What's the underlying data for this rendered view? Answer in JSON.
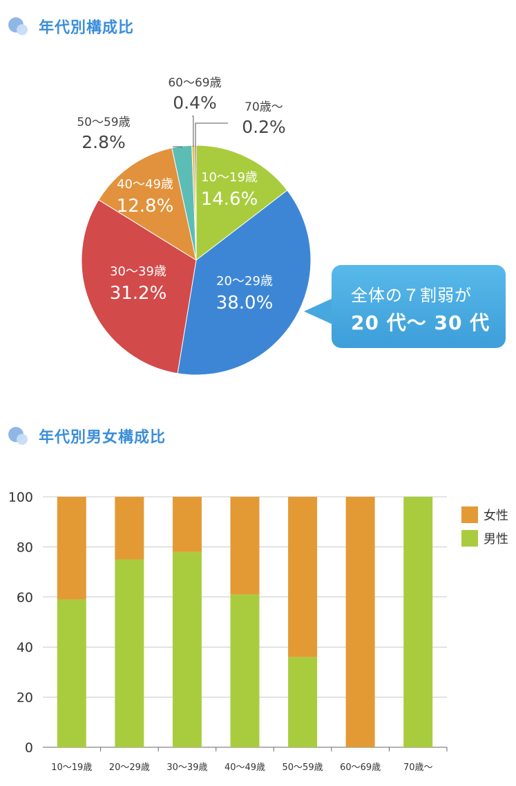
{
  "pie_section": {
    "title": "年代別構成比"
  },
  "bar_section": {
    "title": "年代別男女構成比"
  },
  "callout": {
    "line1": "全体の７割弱が",
    "line2": "20 代〜 30 代"
  },
  "colors": {
    "teens": "#a9cc3e",
    "twenties": "#3d86d6",
    "thirties": "#d34a4a",
    "forties": "#e2923c",
    "fifties": "#5bbdb6",
    "sixties": "#e8c23a",
    "seventies": "#7b3fa0",
    "female": "#e39a35",
    "male": "#a9cc3e"
  },
  "chart_data": [
    {
      "type": "pie",
      "slices": [
        {
          "label": "10〜19歳",
          "value": 14.6,
          "value_label": "14.6%"
        },
        {
          "label": "20〜29歳",
          "value": 38.0,
          "value_label": "38.0%"
        },
        {
          "label": "30〜39歳",
          "value": 31.2,
          "value_label": "31.2%"
        },
        {
          "label": "40〜49歳",
          "value": 12.8,
          "value_label": "12.8%"
        },
        {
          "label": "50〜59歳",
          "value": 2.8,
          "value_label": "2.8%"
        },
        {
          "label": "60〜69歳",
          "value": 0.4,
          "value_label": "0.4%"
        },
        {
          "label": "70歳〜",
          "value": 0.2,
          "value_label": "0.2%"
        }
      ]
    },
    {
      "type": "bar",
      "stacked": true,
      "categories": [
        "10〜19歳",
        "20〜29歳",
        "30〜39歳",
        "40〜49歳",
        "50〜59歳",
        "60〜69歳",
        "70歳〜"
      ],
      "series": [
        {
          "name": "男性",
          "values": [
            59,
            75,
            78,
            61,
            36,
            0,
            100
          ]
        },
        {
          "name": "女性",
          "values": [
            41,
            25,
            22,
            39,
            64,
            100,
            0
          ]
        }
      ],
      "ylim": [
        0,
        100
      ],
      "yticks": [
        "0",
        "20",
        "40",
        "60",
        "80",
        "100"
      ],
      "legend": [
        "女性",
        "男性"
      ],
      "legend_position": "right",
      "grid": true
    }
  ]
}
